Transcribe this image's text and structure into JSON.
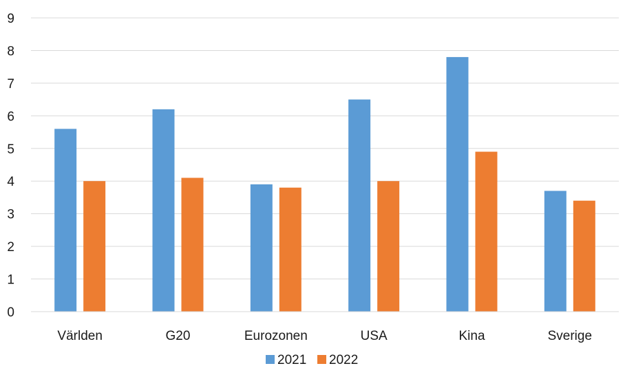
{
  "chart_data": {
    "type": "bar",
    "title": "",
    "xlabel": "",
    "ylabel": "",
    "categories": [
      "Världen",
      "G20",
      "Eurozonen",
      "USA",
      "Kina",
      "Sverige"
    ],
    "series": [
      {
        "name": "2021",
        "color": "#5b9bd5",
        "values": [
          5.6,
          6.2,
          3.9,
          6.5,
          7.8,
          3.7
        ]
      },
      {
        "name": "2022",
        "color": "#ed7d31",
        "values": [
          4.0,
          4.1,
          3.8,
          4.0,
          4.9,
          3.4
        ]
      }
    ],
    "ylim": [
      0,
      9
    ],
    "yticks": [
      "0",
      "1",
      "2",
      "3",
      "4",
      "5",
      "6",
      "7",
      "8",
      "9"
    ],
    "grid": true,
    "gridColor": "#d9d9d9",
    "legend": "bottom"
  }
}
